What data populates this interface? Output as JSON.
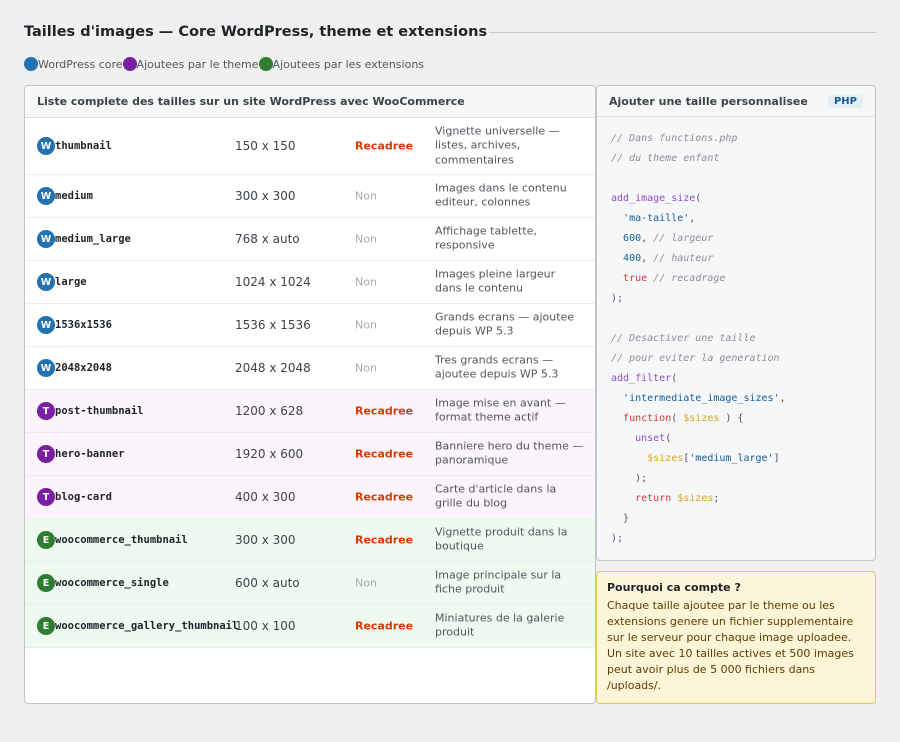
{
  "page": {
    "title": "Tailles d'images — Core WordPress, theme et extensions"
  },
  "legend": [
    {
      "label": "WordPress core",
      "color": "#2271b1"
    },
    {
      "label": "Ajoutees par le theme",
      "color": "#7b1fa2"
    },
    {
      "label": "Ajoutees par les extensions",
      "color": "#2e7d32"
    }
  ],
  "table": {
    "header": "Liste complete des tailles sur un site WordPress avec WooCommerce",
    "rows": [
      {
        "badge": "W",
        "source": "core",
        "name": "thumbnail",
        "dims": "150 x 150",
        "crop": "Recadree",
        "cropped": true,
        "desc": "Vignette universelle — listes, archives, commentaires"
      },
      {
        "badge": "W",
        "source": "core",
        "name": "medium",
        "dims": "300 x 300",
        "crop": "Non",
        "cropped": false,
        "desc": "Images dans le contenu editeur, colonnes"
      },
      {
        "badge": "W",
        "source": "core",
        "name": "medium_large",
        "dims": "768 x auto",
        "crop": "Non",
        "cropped": false,
        "desc": "Affichage tablette, responsive"
      },
      {
        "badge": "W",
        "source": "core",
        "name": "large",
        "dims": "1024 x 1024",
        "crop": "Non",
        "cropped": false,
        "desc": "Images pleine largeur dans le contenu"
      },
      {
        "badge": "W",
        "source": "core",
        "name": "1536x1536",
        "dims": "1536 x 1536",
        "crop": "Non",
        "cropped": false,
        "desc": "Grands ecrans — ajoutee depuis WP 5.3"
      },
      {
        "badge": "W",
        "source": "core",
        "name": "2048x2048",
        "dims": "2048 x 2048",
        "crop": "Non",
        "cropped": false,
        "desc": "Tres grands ecrans — ajoutee depuis WP 5.3"
      },
      {
        "badge": "T",
        "source": "theme",
        "name": "post-thumbnail",
        "dims": "1200 x 628",
        "crop": "Recadree",
        "cropped": true,
        "desc": "Image mise en avant — format theme actif"
      },
      {
        "badge": "T",
        "source": "theme",
        "name": "hero-banner",
        "dims": "1920 x 600",
        "crop": "Recadree",
        "cropped": true,
        "desc": "Banniere hero du theme — panoramique"
      },
      {
        "badge": "T",
        "source": "theme",
        "name": "blog-card",
        "dims": "400 x 300",
        "crop": "Recadree",
        "cropped": true,
        "desc": "Carte d'article dans la grille du blog"
      },
      {
        "badge": "E",
        "source": "ext",
        "name": "woocommerce_thumbnail",
        "dims": "300 x 300",
        "crop": "Recadree",
        "cropped": true,
        "desc": "Vignette produit dans la boutique"
      },
      {
        "badge": "E",
        "source": "ext",
        "name": "woocommerce_single",
        "dims": "600 x auto",
        "crop": "Non",
        "cropped": false,
        "desc": "Image principale sur la fiche produit"
      },
      {
        "badge": "E",
        "source": "ext",
        "name": "woocommerce_gallery_thumbnail",
        "dims": "100 x 100",
        "crop": "Recadree",
        "cropped": true,
        "desc": "Miniatures de la galerie produit"
      }
    ]
  },
  "code": {
    "header": "Ajouter une taille personnalisee",
    "lang": "PHP",
    "lines": [
      [
        {
          "t": "cm",
          "v": "// Dans functions.php"
        }
      ],
      [
        {
          "t": "cm",
          "v": "// du theme enfant"
        }
      ],
      [],
      [
        {
          "t": "fn",
          "v": "add_image_size"
        },
        {
          "t": "pn",
          "v": "("
        }
      ],
      [
        {
          "t": "pn",
          "v": "  "
        },
        {
          "t": "st",
          "v": "'ma-taille'"
        },
        {
          "t": "pn",
          "v": ","
        }
      ],
      [
        {
          "t": "pn",
          "v": "  "
        },
        {
          "t": "nm",
          "v": "600"
        },
        {
          "t": "pn",
          "v": ", "
        },
        {
          "t": "cm",
          "v": "// largeur"
        }
      ],
      [
        {
          "t": "pn",
          "v": "  "
        },
        {
          "t": "nm",
          "v": "400"
        },
        {
          "t": "pn",
          "v": ", "
        },
        {
          "t": "cm",
          "v": "// hauteur"
        }
      ],
      [
        {
          "t": "pn",
          "v": "  "
        },
        {
          "t": "kw",
          "v": "true"
        },
        {
          "t": "pn",
          "v": " "
        },
        {
          "t": "cm",
          "v": "// recadrage"
        }
      ],
      [
        {
          "t": "pn",
          "v": ");"
        }
      ],
      [],
      [
        {
          "t": "cm",
          "v": "// Desactiver une taille"
        }
      ],
      [
        {
          "t": "cm",
          "v": "// pour eviter la generation"
        }
      ],
      [
        {
          "t": "fn",
          "v": "add_filter"
        },
        {
          "t": "pn",
          "v": "("
        }
      ],
      [
        {
          "t": "pn",
          "v": "  "
        },
        {
          "t": "st",
          "v": "'intermediate_image_sizes'"
        },
        {
          "t": "pn",
          "v": ","
        }
      ],
      [
        {
          "t": "pn",
          "v": "  "
        },
        {
          "t": "kw",
          "v": "function"
        },
        {
          "t": "pn",
          "v": "( "
        },
        {
          "t": "vr",
          "v": "$sizes"
        },
        {
          "t": "pn",
          "v": " ) {"
        }
      ],
      [
        {
          "t": "pn",
          "v": "    "
        },
        {
          "t": "fn",
          "v": "unset"
        },
        {
          "t": "pn",
          "v": "("
        }
      ],
      [
        {
          "t": "pn",
          "v": "      "
        },
        {
          "t": "vr",
          "v": "$sizes"
        },
        {
          "t": "pn",
          "v": "["
        },
        {
          "t": "st",
          "v": "'medium_large'"
        },
        {
          "t": "pn",
          "v": "]"
        }
      ],
      [
        {
          "t": "pn",
          "v": "    );"
        }
      ],
      [
        {
          "t": "pn",
          "v": "    "
        },
        {
          "t": "kw",
          "v": "return"
        },
        {
          "t": "pn",
          "v": " "
        },
        {
          "t": "vr",
          "v": "$sizes"
        },
        {
          "t": "pn",
          "v": ";"
        }
      ],
      [
        {
          "t": "pn",
          "v": "  }"
        }
      ],
      [
        {
          "t": "pn",
          "v": ");"
        }
      ]
    ]
  },
  "note": {
    "title": "Pourquoi ca compte ?",
    "text": "Chaque taille ajoutee par le theme ou les extensions genere un fichier supplementaire sur le serveur pour chaque image uploadee. Un site avec 10 tailles actives et 500 images peut avoir plus de 5 000 fichiers dans /uploads/."
  }
}
